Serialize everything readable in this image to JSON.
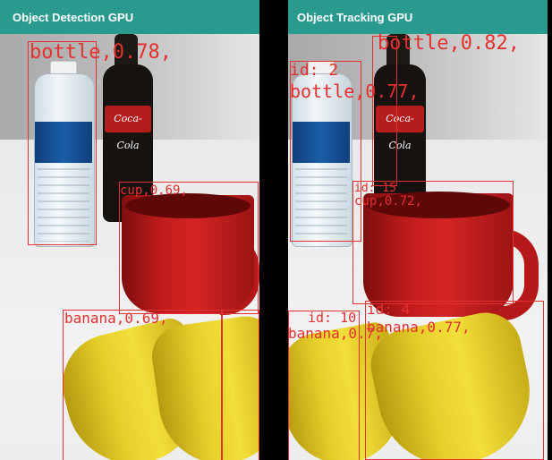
{
  "panels": {
    "left": {
      "title": "Object Detection GPU",
      "detections": [
        {
          "label": "bottle,0.78,",
          "kind": "bottle"
        },
        {
          "label": "cup,0.69,",
          "kind": "cup"
        },
        {
          "label": "banana,0.69,",
          "kind": "banana"
        }
      ]
    },
    "right": {
      "title": "Object Tracking GPU",
      "detections": [
        {
          "label": "bottle,0.82,",
          "kind": "bottle-coke"
        },
        {
          "label": "id: 2",
          "kind": "track-id"
        },
        {
          "label": "bottle,0.77,",
          "kind": "bottle-water"
        },
        {
          "label": "id: 15",
          "kind": "track-id"
        },
        {
          "label": "cup,0.72,",
          "kind": "cup"
        },
        {
          "label": "id: 10",
          "kind": "track-id"
        },
        {
          "label": "banana,0.7,",
          "kind": "banana-left"
        },
        {
          "label": "id: 4",
          "kind": "track-id"
        },
        {
          "label": "banana,0.77,",
          "kind": "banana-right"
        }
      ]
    }
  },
  "coke_label_text": "Coca-Cola",
  "colors": {
    "appbar": "#2a9a8e",
    "bbox": "#e53030"
  }
}
